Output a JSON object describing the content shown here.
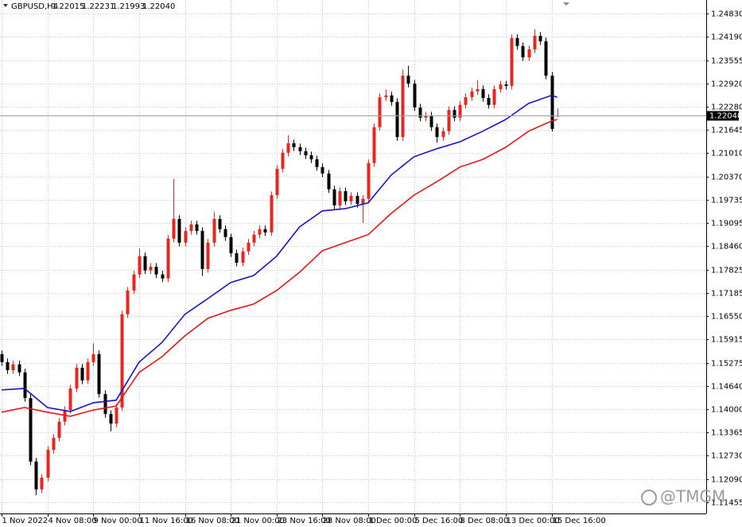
{
  "chart_data": {
    "type": "candlestick",
    "symbol": "GBPUSD,H4",
    "last_bar_labels": [
      "1.22015",
      "1.22231",
      "1.21993",
      "1.22040"
    ],
    "watermark": "@TMGM",
    "up_color": "#e8261e",
    "down_color": "#000000",
    "grid": true,
    "xlim": [
      0,
      123
    ],
    "xticks": [
      {
        "value": 0,
        "label": "1 Nov 2022"
      },
      {
        "value": 8,
        "label": "4 Nov 08:00"
      },
      {
        "value": 16,
        "label": "9 Nov 00:00"
      },
      {
        "value": 24,
        "label": "11 Nov 16:00"
      },
      {
        "value": 32,
        "label": "16 Nov 08:00"
      },
      {
        "value": 40,
        "label": "21 Nov 00:00"
      },
      {
        "value": 48,
        "label": "23 Nov 16:00"
      },
      {
        "value": 56,
        "label": "28 Nov 08:00"
      },
      {
        "value": 64,
        "label": "1 Dec 00:00"
      },
      {
        "value": 72,
        "label": "5 Dec 16:00"
      },
      {
        "value": 80,
        "label": "8 Dec 08:00"
      },
      {
        "value": 88,
        "label": "13 Dec 00:00"
      },
      {
        "value": 96,
        "label": "15 Dec 16:00"
      }
    ],
    "ylim": [
      1.1115,
      1.252
    ],
    "yticks": [
      {
        "value": 1.2483,
        "label": "1.24830"
      },
      {
        "value": 1.2419,
        "label": "1.24190"
      },
      {
        "value": 1.23555,
        "label": "1.23555"
      },
      {
        "value": 1.2292,
        "label": "1.22920"
      },
      {
        "value": 1.2228,
        "label": "1.22280"
      },
      {
        "value": 1.21645,
        "label": "1.21645"
      },
      {
        "value": 1.2101,
        "label": "1.21010"
      },
      {
        "value": 1.2037,
        "label": "1.20370"
      },
      {
        "value": 1.19735,
        "label": "1.19735"
      },
      {
        "value": 1.19095,
        "label": "1.19095"
      },
      {
        "value": 1.1846,
        "label": "1.18460"
      },
      {
        "value": 1.17825,
        "label": "1.17825"
      },
      {
        "value": 1.17185,
        "label": "1.17185"
      },
      {
        "value": 1.1655,
        "label": "1.16550"
      },
      {
        "value": 1.15915,
        "label": "1.15915"
      },
      {
        "value": 1.15275,
        "label": "1.15275"
      },
      {
        "value": 1.1464,
        "label": "1.14640"
      },
      {
        "value": 1.14,
        "label": "1.14000"
      },
      {
        "value": 1.13365,
        "label": "1.13365"
      },
      {
        "value": 1.1273,
        "label": "1.12730"
      },
      {
        "value": 1.1209,
        "label": "1.12090"
      },
      {
        "value": 1.11455,
        "label": "1.11455"
      }
    ],
    "candles": [
      [
        1.1551,
        1.1561,
        1.1519,
        1.1529
      ],
      [
        1.1529,
        1.1539,
        1.1497,
        1.1507
      ],
      [
        1.1507,
        1.1533,
        1.1497,
        1.1523
      ],
      [
        1.1523,
        1.1533,
        1.1491,
        1.1501
      ],
      [
        1.1501,
        1.1511,
        1.1421,
        1.1431
      ],
      [
        1.1431,
        1.1441,
        1.1247,
        1.1257
      ],
      [
        1.1257,
        1.1267,
        1.1165,
        1.1181
      ],
      [
        1.1181,
        1.1223,
        1.1171,
        1.1213
      ],
      [
        1.1213,
        1.1299,
        1.1203,
        1.1289
      ],
      [
        1.1289,
        1.1332,
        1.1279,
        1.1322
      ],
      [
        1.1322,
        1.1376,
        1.1312,
        1.1366
      ],
      [
        1.1366,
        1.1408,
        1.1356,
        1.1398
      ],
      [
        1.1398,
        1.1467,
        1.1388,
        1.1457
      ],
      [
        1.1457,
        1.1524,
        1.1447,
        1.1514
      ],
      [
        1.1514,
        1.1524,
        1.1469,
        1.1479
      ],
      [
        1.1479,
        1.1539,
        1.1469,
        1.1529
      ],
      [
        1.1529,
        1.1581,
        1.1519,
        1.1551
      ],
      [
        1.1551,
        1.1561,
        1.1432,
        1.1442
      ],
      [
        1.1442,
        1.1452,
        1.1377,
        1.1387
      ],
      [
        1.1387,
        1.1397,
        1.134,
        1.1361
      ],
      [
        1.1361,
        1.1415,
        1.1351,
        1.1405
      ],
      [
        1.1405,
        1.167,
        1.1395,
        1.166
      ],
      [
        1.166,
        1.1735,
        1.165,
        1.1725
      ],
      [
        1.1725,
        1.1779,
        1.1715,
        1.1769
      ],
      [
        1.1769,
        1.184,
        1.1759,
        1.1819
      ],
      [
        1.1819,
        1.1829,
        1.177,
        1.178
      ],
      [
        1.178,
        1.18,
        1.177,
        1.179
      ],
      [
        1.179,
        1.18,
        1.1759,
        1.1769
      ],
      [
        1.1769,
        1.1779,
        1.1748,
        1.1758
      ],
      [
        1.1758,
        1.1877,
        1.1748,
        1.1867
      ],
      [
        1.1867,
        1.203,
        1.1857,
        1.1921
      ],
      [
        1.1921,
        1.1931,
        1.1846,
        1.1856
      ],
      [
        1.1856,
        1.1898,
        1.1846,
        1.1888
      ],
      [
        1.1888,
        1.1916,
        1.1878,
        1.1906
      ],
      [
        1.1906,
        1.1916,
        1.1878,
        1.1888
      ],
      [
        1.1888,
        1.1898,
        1.1765,
        1.1784
      ],
      [
        1.1784,
        1.1866,
        1.1774,
        1.1856
      ],
      [
        1.1856,
        1.194,
        1.1846,
        1.1921
      ],
      [
        1.1921,
        1.1931,
        1.1883,
        1.1893
      ],
      [
        1.1893,
        1.1903,
        1.1861,
        1.1871
      ],
      [
        1.1871,
        1.1881,
        1.1817,
        1.1827
      ],
      [
        1.1827,
        1.1837,
        1.1791,
        1.1801
      ],
      [
        1.1801,
        1.1842,
        1.1791,
        1.1832
      ],
      [
        1.1832,
        1.1866,
        1.1822,
        1.1856
      ],
      [
        1.1856,
        1.1888,
        1.1846,
        1.1878
      ],
      [
        1.1878,
        1.1903,
        1.1868,
        1.1893
      ],
      [
        1.1893,
        1.1903,
        1.1874,
        1.1884
      ],
      [
        1.1884,
        1.1996,
        1.1874,
        1.1986
      ],
      [
        1.1986,
        1.2068,
        1.1976,
        1.2058
      ],
      [
        1.2058,
        1.2112,
        1.2048,
        1.2102
      ],
      [
        1.2102,
        1.215,
        1.2092,
        1.2128
      ],
      [
        1.2128,
        1.2138,
        1.2107,
        1.2117
      ],
      [
        1.2117,
        1.2127,
        1.2096,
        1.2106
      ],
      [
        1.2106,
        1.2116,
        1.2085,
        1.2095
      ],
      [
        1.2095,
        1.2105,
        1.2074,
        1.2084
      ],
      [
        1.2084,
        1.2094,
        1.2053,
        1.2063
      ],
      [
        1.2063,
        1.2073,
        1.2035,
        1.2045
      ],
      [
        1.2045,
        1.2055,
        1.1992,
        1.2002
      ],
      [
        1.2002,
        1.2012,
        1.1948,
        1.1958
      ],
      [
        1.1958,
        1.2007,
        1.1948,
        1.1997
      ],
      [
        1.1997,
        1.2007,
        1.1959,
        1.1969
      ],
      [
        1.1969,
        1.1994,
        1.1959,
        1.1984
      ],
      [
        1.1984,
        1.1994,
        1.1952,
        1.1962
      ],
      [
        1.1962,
        1.1986,
        1.191,
        1.1976
      ],
      [
        1.1976,
        1.2084,
        1.1966,
        1.2074
      ],
      [
        1.2074,
        1.2182,
        1.2064,
        1.2172
      ],
      [
        1.2172,
        1.2264,
        1.2162,
        1.2254
      ],
      [
        1.2254,
        1.2275,
        1.2244,
        1.2259
      ],
      [
        1.2259,
        1.2269,
        1.2231,
        1.2241
      ],
      [
        1.2241,
        1.2251,
        1.2135,
        1.2145
      ],
      [
        1.2145,
        1.233,
        1.2135,
        1.2313
      ],
      [
        1.2313,
        1.234,
        1.2281,
        1.2291
      ],
      [
        1.2291,
        1.2301,
        1.2216,
        1.2226
      ],
      [
        1.2226,
        1.2236,
        1.2188,
        1.2198
      ],
      [
        1.2198,
        1.2214,
        1.2188,
        1.2204
      ],
      [
        1.2204,
        1.2214,
        1.2162,
        1.2172
      ],
      [
        1.2172,
        1.2182,
        1.213,
        1.2145
      ],
      [
        1.2145,
        1.2171,
        1.2135,
        1.2161
      ],
      [
        1.2161,
        1.2229,
        1.2151,
        1.2219
      ],
      [
        1.2219,
        1.2229,
        1.2188,
        1.2198
      ],
      [
        1.2198,
        1.2243,
        1.2188,
        1.2233
      ],
      [
        1.2233,
        1.2264,
        1.2223,
        1.2254
      ],
      [
        1.2254,
        1.228,
        1.2244,
        1.227
      ],
      [
        1.227,
        1.23,
        1.226,
        1.2276
      ],
      [
        1.2276,
        1.2286,
        1.2242,
        1.2252
      ],
      [
        1.2252,
        1.2262,
        1.2223,
        1.2233
      ],
      [
        1.2233,
        1.2286,
        1.2223,
        1.2276
      ],
      [
        1.2276,
        1.2299,
        1.2266,
        1.2289
      ],
      [
        1.2289,
        1.2299,
        1.2275,
        1.2285
      ],
      [
        1.2285,
        1.2426,
        1.2275,
        1.2416
      ],
      [
        1.2416,
        1.2426,
        1.2384,
        1.2394
      ],
      [
        1.2394,
        1.2404,
        1.2353,
        1.2363
      ],
      [
        1.2363,
        1.2395,
        1.2353,
        1.2385
      ],
      [
        1.2385,
        1.244,
        1.2375,
        1.2422
      ],
      [
        1.2422,
        1.2432,
        1.2397,
        1.2407
      ],
      [
        1.2407,
        1.2417,
        1.2303,
        1.2313
      ],
      [
        1.2313,
        1.2323,
        1.216,
        1.2167
      ],
      [
        1.22015,
        1.22231,
        1.21993,
        1.2204
      ]
    ],
    "series": [
      {
        "color": "#1414c8",
        "x": [
          0,
          4,
          8,
          12,
          16,
          20,
          24,
          28,
          32,
          36,
          40,
          44,
          48,
          52,
          56,
          60,
          64,
          68,
          72,
          76,
          80,
          84,
          88,
          92,
          96,
          97
        ],
        "values": [
          1.1453,
          1.1457,
          1.1405,
          1.1394,
          1.1418,
          1.1425,
          1.1529,
          1.1583,
          1.166,
          1.1703,
          1.1747,
          1.1766,
          1.1819,
          1.1899,
          1.1943,
          1.1949,
          1.1965,
          1.2041,
          1.2091,
          1.2113,
          1.2132,
          1.2161,
          1.2193,
          1.2237,
          1.2259,
          1.2254
        ]
      },
      {
        "color": "#e81414",
        "x": [
          0,
          4,
          8,
          12,
          16,
          20,
          24,
          28,
          32,
          36,
          40,
          44,
          48,
          52,
          56,
          60,
          64,
          68,
          72,
          76,
          80,
          84,
          88,
          92,
          96,
          97
        ],
        "values": [
          1.1392,
          1.1405,
          1.1392,
          1.1381,
          1.1398,
          1.1409,
          1.1501,
          1.1544,
          1.1601,
          1.1649,
          1.1671,
          1.1688,
          1.1725,
          1.1775,
          1.1834,
          1.1856,
          1.1878,
          1.1936,
          1.1986,
          1.2023,
          1.2063,
          1.2084,
          1.2117,
          1.2161,
          1.2189,
          1.2193
        ]
      }
    ]
  }
}
